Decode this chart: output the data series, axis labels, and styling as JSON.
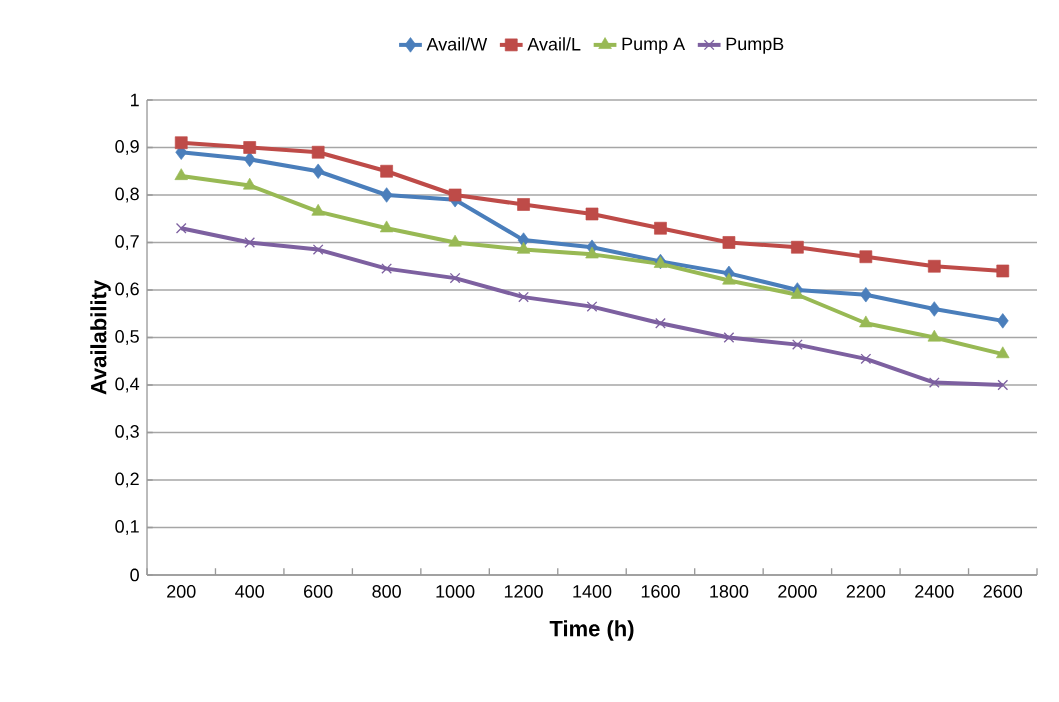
{
  "chart_data": {
    "type": "line",
    "xlabel": "Time (h)",
    "ylabel": "Availability",
    "categories": [
      "200",
      "400",
      "600",
      "800",
      "1000",
      "1200",
      "1400",
      "1600",
      "1800",
      "2000",
      "2200",
      "2400",
      "2600"
    ],
    "series": [
      {
        "name": "Avail/W",
        "color": "#4a7ebb",
        "marker": "diamond",
        "values": [
          0.89,
          0.875,
          0.85,
          0.8,
          0.79,
          0.705,
          0.69,
          0.66,
          0.635,
          0.6,
          0.59,
          0.56,
          0.535
        ]
      },
      {
        "name": "Avail/L",
        "color": "#be4b48",
        "marker": "square",
        "values": [
          0.91,
          0.9,
          0.89,
          0.85,
          0.8,
          0.78,
          0.76,
          0.73,
          0.7,
          0.69,
          0.67,
          0.65,
          0.64
        ]
      },
      {
        "name": "Pump A",
        "color": "#98b954",
        "marker": "triangle",
        "values": [
          0.84,
          0.82,
          0.765,
          0.73,
          0.7,
          0.685,
          0.675,
          0.655,
          0.62,
          0.59,
          0.53,
          0.5,
          0.465
        ]
      },
      {
        "name": "PumpB",
        "color": "#7d60a0",
        "marker": "cross",
        "values": [
          0.73,
          0.7,
          0.685,
          0.645,
          0.625,
          0.585,
          0.565,
          0.53,
          0.5,
          0.485,
          0.455,
          0.405,
          0.4
        ]
      }
    ],
    "ylim": [
      0,
      1
    ],
    "yticks": [
      {
        "value": 0,
        "label": "0"
      },
      {
        "value": 0.1,
        "label": "0,1"
      },
      {
        "value": 0.2,
        "label": "0,2"
      },
      {
        "value": 0.3,
        "label": "0,3"
      },
      {
        "value": 0.4,
        "label": "0,4"
      },
      {
        "value": 0.5,
        "label": "0,5"
      },
      {
        "value": 0.6,
        "label": "0,6"
      },
      {
        "value": 0.7,
        "label": "0,7"
      },
      {
        "value": 0.8,
        "label": "0,8"
      },
      {
        "value": 0.9,
        "label": "0,9"
      },
      {
        "value": 1,
        "label": "1"
      }
    ],
    "grid": "y",
    "legend": "top",
    "line_style": "solid"
  }
}
